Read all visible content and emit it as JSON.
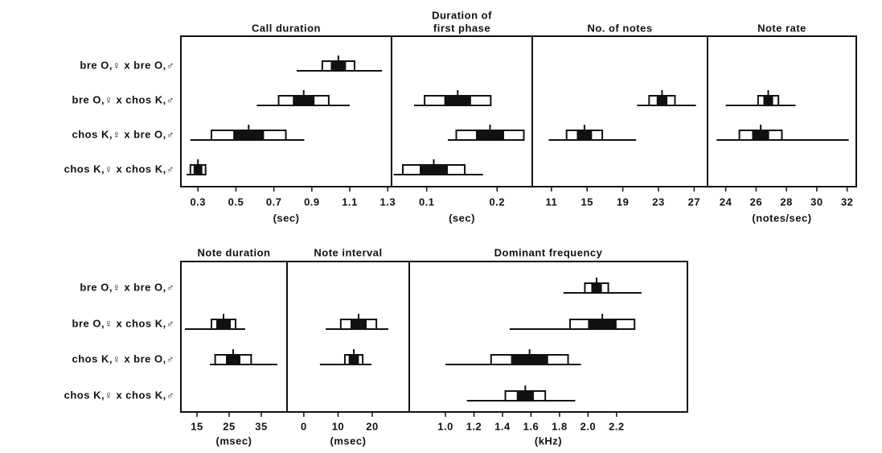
{
  "chart_data": [
    {
      "type": "dice",
      "title": "Call duration",
      "xlabel": "(sec)",
      "xlim": [
        0.21,
        1.32
      ],
      "xticks": [
        0.3,
        0.5,
        0.7,
        0.9,
        1.1,
        1.3
      ],
      "categories": [
        "bre O,♀ x bre O,♂",
        "bre O,♀ x chos K,♂",
        "chos K,♀ x bre O,♂",
        "chos K,♀ x chos K,♂"
      ],
      "groups": [
        {
          "mean": 1.04,
          "min": 0.82,
          "max": 1.27,
          "sd": 0.085,
          "se": 0.04
        },
        {
          "mean": 0.857,
          "min": 0.61,
          "max": 1.1,
          "sd": 0.132,
          "se": 0.057
        },
        {
          "mean": 0.567,
          "min": 0.26,
          "max": 0.86,
          "sd": 0.196,
          "se": 0.081
        },
        {
          "mean": 0.3,
          "min": 0.24,
          "max": 0.33,
          "sd": 0.04,
          "se": 0.023
        }
      ]
    },
    {
      "type": "dice",
      "title": [
        "Duration of",
        "first phase"
      ],
      "xlabel": "(sec)",
      "xlim": [
        0.05,
        0.25
      ],
      "xticks": [
        0.1,
        0.2
      ],
      "groups": [
        null,
        {
          "mean": 0.144,
          "min": 0.082,
          "max": 0.181,
          "sd": 0.047,
          "se": 0.019
        },
        {
          "mean": 0.19,
          "min": 0.13,
          "max": 0.237,
          "sd": 0.048,
          "se": 0.02
        },
        {
          "mean": 0.11,
          "min": 0.053,
          "max": 0.18,
          "sd": 0.044,
          "se": 0.02
        }
      ]
    },
    {
      "type": "dice",
      "title": "No. of notes",
      "xlim": [
        8.85,
        28.5
      ],
      "xticks": [
        11,
        15,
        19,
        23,
        27
      ],
      "groups": [
        null,
        {
          "mean": 23.4,
          "min": 20.6,
          "max": 27.2,
          "sd": 1.45,
          "se": 0.6
        },
        {
          "mean": 14.7,
          "min": 10.7,
          "max": 20.5,
          "sd": 2.0,
          "se": 0.85
        },
        null
      ]
    },
    {
      "type": "dice",
      "title": "Note rate",
      "xlabel": "(notes/sec)",
      "xlim": [
        22.8,
        32.6
      ],
      "xticks": [
        24,
        26,
        28,
        30,
        32
      ],
      "groups": [
        null,
        {
          "mean": 26.8,
          "min": 24.0,
          "max": 28.6,
          "sd": 0.67,
          "se": 0.32
        },
        {
          "mean": 26.3,
          "min": 23.4,
          "max": 32.1,
          "sd": 1.4,
          "se": 0.56
        },
        null
      ]
    },
    {
      "type": "dice",
      "title": "Note duration",
      "xlabel": "(msec)",
      "xlim": [
        10,
        43
      ],
      "xticks": [
        15,
        25,
        35
      ],
      "categories": [
        "bre O,♀ x bre O,♂",
        "bre O,♀ x chos K,♂",
        "chos K,♀ x bre O,♂",
        "chos K,♀ x chos K,♂"
      ],
      "groups": [
        null,
        {
          "mean": 23.25,
          "min": 11.25,
          "max": 30,
          "sd": 3.75,
          "se": 2.25
        },
        {
          "mean": 26.25,
          "min": 19,
          "max": 40,
          "sd": 5.6,
          "se": 2.25
        },
        null
      ]
    },
    {
      "type": "dice",
      "title": "Note interval",
      "xlabel": "(msec)",
      "xlim": [
        -4.9,
        30.8
      ],
      "xticks": [
        0,
        10,
        20
      ],
      "groups": [
        null,
        {
          "mean": 16,
          "min": 6.4,
          "max": 24.7,
          "sd": 5.2,
          "se": 2.35
        },
        {
          "mean": 14.6,
          "min": 4.7,
          "max": 19.8,
          "sd": 2.6,
          "se": 1.5
        },
        null
      ]
    },
    {
      "type": "dice",
      "title": "Dominant frequency",
      "xlabel": "(kHz)",
      "xlim": [
        0.746,
        2.697
      ],
      "xticks": [
        {
          "value": 1,
          "label": "1.0"
        },
        1.2,
        1.4,
        1.6,
        1.8,
        {
          "value": 2,
          "label": "2.0"
        },
        2.2
      ],
      "groups": [
        {
          "mean": 2.06,
          "min": 1.828,
          "max": 2.375,
          "sd": 0.082,
          "se": 0.037
        },
        {
          "mean": 2.1,
          "min": 1.45,
          "max": 2.3,
          "sd": 0.226,
          "se": 0.1
        },
        {
          "mean": 1.59,
          "min": 1.0,
          "max": 1.95,
          "sd": 0.27,
          "se": 0.13
        },
        {
          "mean": 1.56,
          "min": 1.15,
          "max": 1.91,
          "sd": 0.14,
          "se": 0.06
        }
      ]
    }
  ]
}
